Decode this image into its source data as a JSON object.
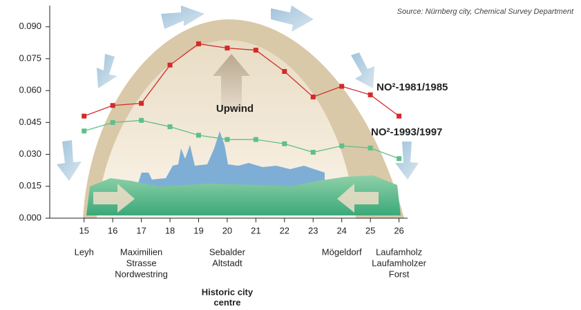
{
  "chart_data": {
    "type": "line",
    "source": "Source: Nürnberg city, Chemical Survey Department",
    "x": [
      15,
      16,
      17,
      18,
      19,
      20,
      21,
      22,
      23,
      24,
      25,
      26
    ],
    "xlim": [
      13.8,
      26.3
    ],
    "xticks": [
      15,
      16,
      17,
      18,
      19,
      20,
      21,
      22,
      23,
      24,
      25,
      26
    ],
    "ylim": [
      0,
      0.1
    ],
    "yticks": [
      {
        "value": 0,
        "label": "0.000"
      },
      {
        "value": 0.015,
        "label": "0.015"
      },
      {
        "value": 0.03,
        "label": "0.030"
      },
      {
        "value": 0.045,
        "label": "0.045"
      },
      {
        "value": 0.06,
        "label": "0.060"
      },
      {
        "value": 0.075,
        "label": "0.075"
      },
      {
        "value": 0.09,
        "label": "0.090"
      }
    ],
    "series": [
      {
        "name": "NO²-1981/1985",
        "color": "#d42a2a",
        "values": [
          0.048,
          0.053,
          0.054,
          0.072,
          0.082,
          0.08,
          0.079,
          0.069,
          0.057,
          0.062,
          0.058,
          0.048
        ]
      },
      {
        "name": "NO²-1993/1997",
        "color": "#5fbf8a",
        "values": [
          0.041,
          0.045,
          0.046,
          0.043,
          0.039,
          0.037,
          0.037,
          0.035,
          0.031,
          0.034,
          0.033,
          0.028
        ]
      }
    ],
    "annotation": "Upwind",
    "districts": [
      {
        "x": 15,
        "lines": [
          "Leyh"
        ]
      },
      {
        "x": 17,
        "lines": [
          "Maximilien",
          "Strasse",
          "Nordwestring"
        ]
      },
      {
        "x": 20,
        "lines": [
          "Sebalder",
          "Altstadt"
        ]
      },
      {
        "x": 24,
        "lines": [
          "Mögeldorf"
        ]
      },
      {
        "x": 26,
        "lines": [
          "Laufamholz",
          "Laufamholzer",
          "Forst"
        ]
      }
    ],
    "centre_label": [
      "Historic city",
      "centre"
    ]
  }
}
